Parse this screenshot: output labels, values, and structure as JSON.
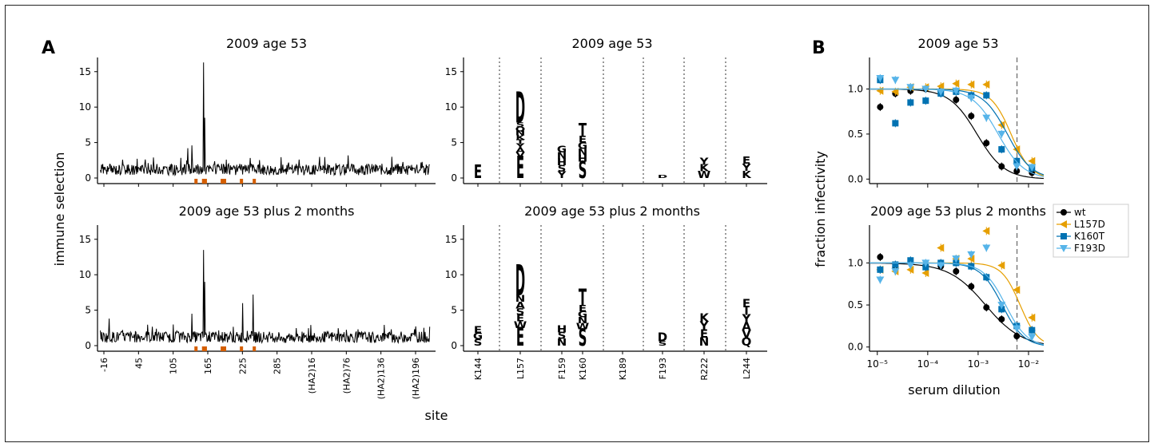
{
  "figure": {
    "panel_a_letter": "A",
    "panel_b_letter": "B",
    "axis_text_color": "#000000"
  },
  "colors": {
    "wt": "#000000",
    "L157D": "#E69F00",
    "K160T": "#0072B2",
    "F193D": "#56B4E9",
    "grey_letters": "#999999",
    "site_marks": "#D55E00",
    "dashed_line": "#777777"
  },
  "chart_data": [
    {
      "id": "a-line-top",
      "type": "line",
      "title": "2009 age 53",
      "ylabel": "immune selection",
      "xlabel": "",
      "ylim": [
        0,
        17
      ],
      "yticks": [
        0,
        5,
        10,
        15
      ],
      "x_tick_labels": [],
      "series": [
        {
          "values_desc": "per-site immune selection profile",
          "peaks": [
            {
              "site": 157,
              "value": 16.3
            },
            {
              "site": 159,
              "value": 8.5
            },
            {
              "site": 130,
              "value": 4.2
            },
            {
              "site": 137,
              "value": 4.6
            }
          ]
        }
      ],
      "highlight_sites": [
        144,
        157,
        159,
        160,
        189,
        193,
        222,
        244
      ]
    },
    {
      "id": "a-line-bottom",
      "type": "line",
      "title": "2009 age 53 plus 2 months",
      "ylabel": "",
      "xlabel": "site",
      "ylim": [
        0,
        17
      ],
      "yticks": [
        0,
        5,
        10,
        15
      ],
      "x_tick_labels": [
        "-16",
        "45",
        "105",
        "165",
        "225",
        "285",
        "(HA2)16",
        "(HA2)76",
        "(HA2)136",
        "(HA2)196"
      ],
      "series": [
        {
          "values_desc": "per-site immune selection profile",
          "peaks": [
            {
              "site": 157,
              "value": 13.5
            },
            {
              "site": 159,
              "value": 9.0
            },
            {
              "site": 224,
              "value": 6.0
            },
            {
              "site": 242,
              "value": 7.2
            },
            {
              "site": 137,
              "value": 4.5
            },
            {
              "site": -5,
              "value": 3.8
            }
          ]
        }
      ],
      "highlight_sites": [
        144,
        157,
        159,
        160,
        189,
        193,
        222,
        244
      ]
    },
    {
      "id": "a-logo-top",
      "type": "logo",
      "title": "2009 age 53",
      "ylim": [
        0,
        17
      ],
      "yticks": [
        0,
        5,
        10,
        15
      ],
      "sites": [
        "K144",
        "L157",
        "F159",
        "K160",
        "K189",
        "F193",
        "R222",
        "L244"
      ],
      "highlighted_letters": [
        {
          "site": "L157",
          "letter": "D",
          "height": 4.2
        },
        {
          "site": "K160",
          "letter": "T",
          "height": 1.7
        },
        {
          "site": "F193",
          "letter": "D",
          "height": 0.4
        }
      ],
      "grey_letters": [
        {
          "site": "K144",
          "letters": "E",
          "height": 1.8
        },
        {
          "site": "L157",
          "letters": "E",
          "height": 3.0
        },
        {
          "site": "L157",
          "letters": "SQNKTYAV",
          "height": 4.8
        },
        {
          "site": "F159",
          "letters": "GNHSY",
          "height": 4.5
        },
        {
          "site": "K160",
          "letters": "S",
          "height": 2.3
        },
        {
          "site": "K160",
          "letters": "EGNH",
          "height": 3.6
        },
        {
          "site": "R222",
          "letters": "YKW",
          "height": 2.8
        },
        {
          "site": "L244",
          "letters": "EYK",
          "height": 3.0
        }
      ]
    },
    {
      "id": "a-logo-bottom",
      "type": "logo",
      "title": "2009 age 53 plus 2 months",
      "ylim": [
        0,
        17
      ],
      "yticks": [
        0,
        5,
        10,
        15
      ],
      "sites": [
        "K144",
        "L157",
        "F159",
        "K160",
        "K189",
        "F193",
        "R222",
        "L244"
      ],
      "x_tick_labels": [
        "K144",
        "L157",
        "F159",
        "K160",
        "K189",
        "F193",
        "R222",
        "L244"
      ],
      "highlighted_letters": [
        {
          "site": "L157",
          "letter": "D",
          "height": 4.2
        },
        {
          "site": "K160",
          "letter": "T",
          "height": 2.2
        },
        {
          "site": "F193",
          "letter": "D",
          "height": 1.2
        }
      ],
      "grey_letters": [
        {
          "site": "K144",
          "letters": "EGS",
          "height": 2.7
        },
        {
          "site": "L157",
          "letters": "E",
          "height": 2.5
        },
        {
          "site": "L157",
          "letters": "NASEW",
          "height": 4.6
        },
        {
          "site": "F159",
          "letters": "HSN",
          "height": 2.8
        },
        {
          "site": "K160",
          "letters": "S",
          "height": 2.3
        },
        {
          "site": "K160",
          "letters": "EGNW",
          "height": 3.4
        },
        {
          "site": "F193",
          "letters": "S",
          "height": 0.6
        },
        {
          "site": "R222",
          "letters": "KYEN",
          "height": 4.5
        },
        {
          "site": "L244",
          "letters": "EIYAVQ",
          "height": 6.5
        }
      ]
    },
    {
      "id": "b-top",
      "type": "scatter",
      "title": "2009 age 53",
      "ylabel": "",
      "xlabel": "",
      "xscale": "log",
      "xlim": [
        7e-06,
        0.02
      ],
      "ylim": [
        -0.05,
        1.35
      ],
      "yticks": [
        0.0,
        0.5,
        1.0
      ],
      "ytick_labels": [
        "0.0",
        "0.5",
        "1.0"
      ],
      "dashed_x": 0.0059,
      "x": [
        1.14e-05,
        2.28e-05,
        4.56e-05,
        9.12e-05,
        0.000182,
        0.000365,
        0.00073,
        0.00146,
        0.00292,
        0.00584,
        0.0117
      ],
      "series": [
        {
          "name": "wt",
          "marker": "circle",
          "values": [
            0.8,
            0.95,
            0.98,
            1.0,
            0.98,
            0.88,
            0.7,
            0.4,
            0.14,
            0.09,
            0.07
          ],
          "ic50": 0.00095,
          "hill": 1.6
        },
        {
          "name": "L157D",
          "marker": "triangle-left",
          "values": [
            0.98,
            0.97,
            1.02,
            1.02,
            1.03,
            1.06,
            1.05,
            1.05,
            0.6,
            0.33,
            0.2
          ],
          "ic50": 0.0045,
          "hill": 2.2
        },
        {
          "name": "K160T",
          "marker": "square",
          "values": [
            1.1,
            0.62,
            0.85,
            0.87,
            0.95,
            0.97,
            0.93,
            0.93,
            0.33,
            0.2,
            0.12
          ],
          "ic50": 0.0038,
          "hill": 1.8
        },
        {
          "name": "F193D",
          "marker": "triangle-down",
          "values": [
            1.12,
            1.1,
            1.02,
            1.0,
            0.97,
            0.98,
            0.9,
            0.68,
            0.5,
            0.14,
            0.13
          ],
          "ic50": 0.0025,
          "hill": 1.7
        }
      ]
    },
    {
      "id": "b-bottom",
      "type": "scatter",
      "title": "2009 age 53 plus 2 months",
      "ylabel": "fraction infectivity",
      "xlabel": "serum dilution",
      "xscale": "log",
      "xlim": [
        7e-06,
        0.02
      ],
      "ylim": [
        -0.05,
        1.45
      ],
      "yticks": [
        0.0,
        0.5,
        1.0
      ],
      "ytick_labels": [
        "0.0",
        "0.5",
        "1.0"
      ],
      "xtick_labels": [
        "10⁻⁵",
        "10⁻⁴",
        "10⁻³",
        "10⁻²"
      ],
      "xtick_values": [
        1e-05,
        0.0001,
        0.001,
        0.01
      ],
      "dashed_x": 0.0059,
      "x": [
        1.14e-05,
        2.28e-05,
        4.56e-05,
        9.12e-05,
        0.000182,
        0.000365,
        0.00073,
        0.00146,
        0.00292,
        0.00584,
        0.0117
      ],
      "series": [
        {
          "name": "wt",
          "marker": "circle",
          "values": [
            1.07,
            0.95,
            1.0,
            0.96,
            0.96,
            0.9,
            0.72,
            0.47,
            0.33,
            0.13,
            0.2
          ],
          "ic50": 0.0014,
          "hill": 1.2
        },
        {
          "name": "L157D",
          "marker": "triangle-left",
          "values": [
            0.92,
            0.9,
            0.92,
            0.88,
            1.18,
            1.05,
            1.05,
            1.38,
            0.97,
            0.68,
            0.35
          ],
          "ic50": 0.0068,
          "hill": 2.4
        },
        {
          "name": "K160T",
          "marker": "square",
          "values": [
            0.92,
            0.98,
            1.03,
            0.95,
            1.0,
            1.0,
            0.96,
            0.83,
            0.45,
            0.25,
            0.2
          ],
          "ic50": 0.003,
          "hill": 2.0
        },
        {
          "name": "F193D",
          "marker": "triangle-down",
          "values": [
            0.8,
            0.9,
            0.97,
            1.0,
            0.97,
            1.05,
            1.1,
            1.18,
            0.5,
            0.22,
            0.12
          ],
          "ic50": 0.0035,
          "hill": 2.0
        }
      ],
      "legend": {
        "placement": "right",
        "entries": [
          "wt",
          "L157D",
          "K160T",
          "F193D"
        ]
      }
    }
  ]
}
